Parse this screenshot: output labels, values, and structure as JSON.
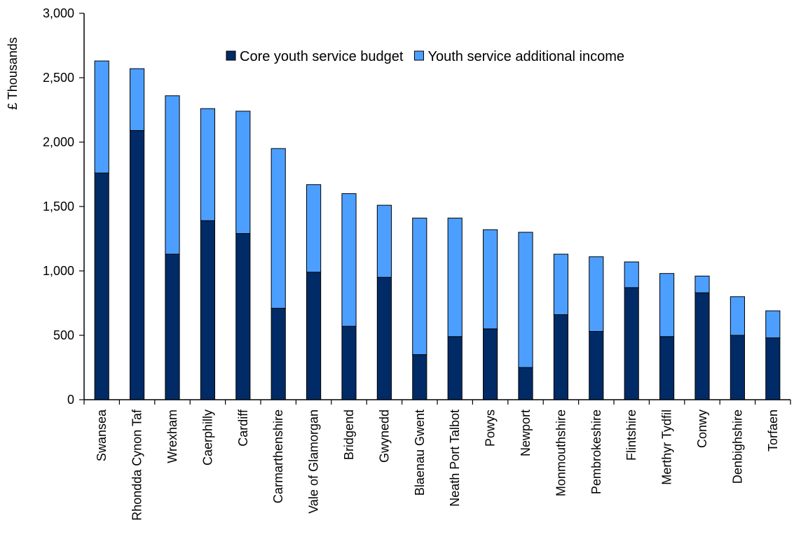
{
  "chart_data": {
    "type": "bar",
    "stacked": true,
    "ylabel": "£ Thousands",
    "xlabel": "",
    "ylim": [
      0,
      3000
    ],
    "yticks": [
      0,
      500,
      1000,
      1500,
      2000,
      2500,
      3000
    ],
    "ytick_labels": [
      "0",
      "500",
      "1,000",
      "1,500",
      "2,000",
      "2,500",
      "3,000"
    ],
    "grid": false,
    "legend_position": "top",
    "categories": [
      "Swansea",
      "Rhondda Cynon Taf",
      "Wrexham",
      "Caerphilly",
      "Cardiff",
      "Carmarthenshire",
      "Vale of Glamorgan",
      "Bridgend",
      "Gwynedd",
      "Blaenau Gwent",
      "Neath Port Talbot",
      "Powys",
      "Newport",
      "Monmouthshire",
      "Pembrokeshire",
      "Flintshire",
      "Merthyr Tydfil",
      "Conwy",
      "Denbighshire",
      "Torfaen"
    ],
    "series": [
      {
        "name": "Core youth service budget",
        "color": "#002b66",
        "values": [
          1760,
          2090,
          1130,
          1390,
          1290,
          710,
          990,
          570,
          950,
          350,
          490,
          550,
          250,
          660,
          530,
          870,
          490,
          830,
          500,
          480
        ]
      },
      {
        "name": "Youth service additional income",
        "color": "#4d9fff",
        "values": [
          870,
          480,
          1230,
          870,
          950,
          1240,
          680,
          1030,
          560,
          1060,
          920,
          770,
          1050,
          470,
          580,
          200,
          490,
          130,
          300,
          210
        ]
      }
    ]
  }
}
